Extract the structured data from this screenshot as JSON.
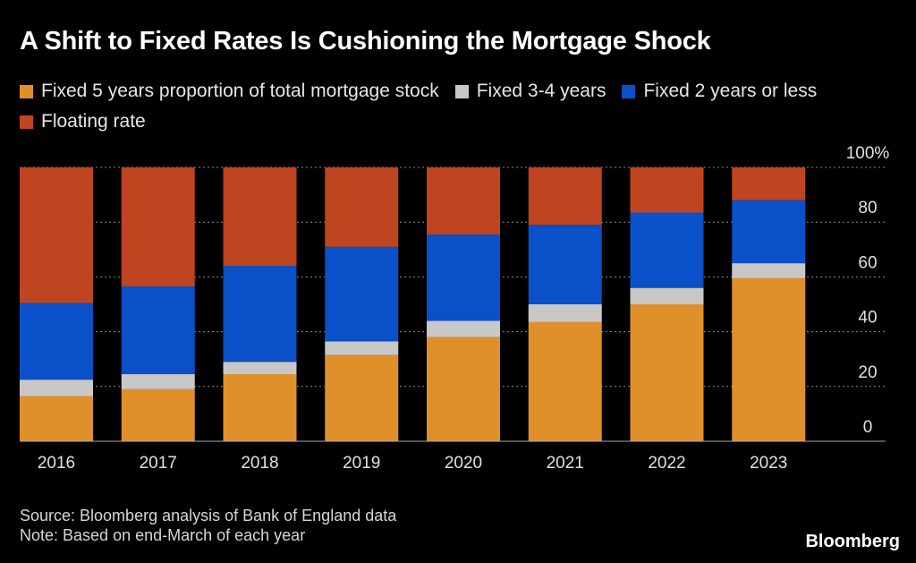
{
  "title": "A Shift to Fixed Rates Is Cushioning the Mortgage Shock",
  "legend": [
    {
      "label": "Fixed 5 years proportion of total mortgage stock",
      "color": "#e0902a"
    },
    {
      "label": "Fixed 3-4 years",
      "color": "#c8c8c8"
    },
    {
      "label": "Fixed 2 years or less",
      "color": "#0a50c8"
    },
    {
      "label": "Floating rate",
      "color": "#bf4420"
    }
  ],
  "footer": {
    "source": "Source: Bloomberg analysis of Bank of England data",
    "note": "Note: Based on end-March of each year"
  },
  "brand": "Bloomberg",
  "chart_data": {
    "type": "bar",
    "stacked": true,
    "categories": [
      "2016",
      "2017",
      "2018",
      "2019",
      "2020",
      "2021",
      "2022",
      "2023"
    ],
    "series": [
      {
        "name": "Fixed 5 years proportion of total mortgage stock",
        "color": "#e0902a",
        "values": [
          16.5,
          19,
          24.5,
          31.5,
          38,
          43.5,
          50,
          59.5
        ]
      },
      {
        "name": "Fixed 3-4 years",
        "color": "#c8c8c8",
        "values": [
          6,
          5.5,
          4.5,
          5,
          6,
          6.5,
          6,
          5.5
        ]
      },
      {
        "name": "Fixed 2 years or less",
        "color": "#0a50c8",
        "values": [
          28,
          32,
          35,
          34.5,
          31.5,
          29,
          27.5,
          23
        ]
      },
      {
        "name": "Floating rate",
        "color": "#bf4420",
        "values": [
          49.5,
          43.5,
          36,
          29,
          24.5,
          21,
          16.5,
          12
        ]
      }
    ],
    "ylim": [
      0,
      100
    ],
    "yticks": [
      0,
      20,
      40,
      60,
      80,
      100
    ],
    "ytick_labels": [
      "0",
      "20",
      "40",
      "60",
      "80",
      "100%"
    ],
    "grid": true,
    "legend_position": "top"
  }
}
